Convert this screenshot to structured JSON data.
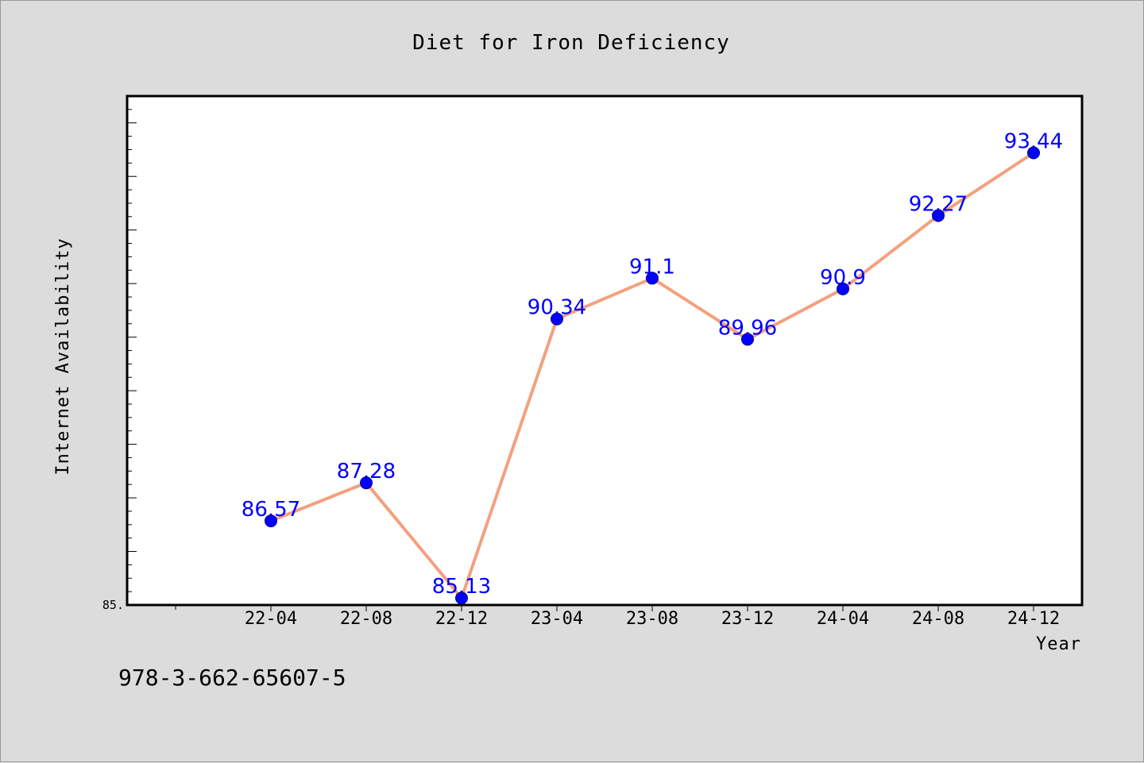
{
  "chart_data": {
    "type": "line",
    "title": "Diet for Iron Deficiency",
    "xlabel": "Year",
    "ylabel": "Internet Availability",
    "categories": [
      "22-04",
      "22-08",
      "22-12",
      "23-04",
      "23-08",
      "23-12",
      "24-04",
      "24-08",
      "24-12"
    ],
    "values": [
      86.57,
      87.28,
      85.13,
      90.34,
      91.1,
      89.96,
      90.9,
      92.27,
      93.44
    ],
    "data_labels": [
      "86.57",
      "87.28",
      "85.13",
      "90.34",
      "91.1",
      "89.96",
      "90.9",
      "92.27",
      "93.44"
    ],
    "ylim": [
      85,
      94.5
    ],
    "y_tick_labels": [
      "85."
    ],
    "grid": false,
    "colors": {
      "line": "#f4a07e",
      "marker": "#0000ff",
      "data_label": "#0000ff"
    }
  },
  "footer_code": "978-3-662-65607-5"
}
